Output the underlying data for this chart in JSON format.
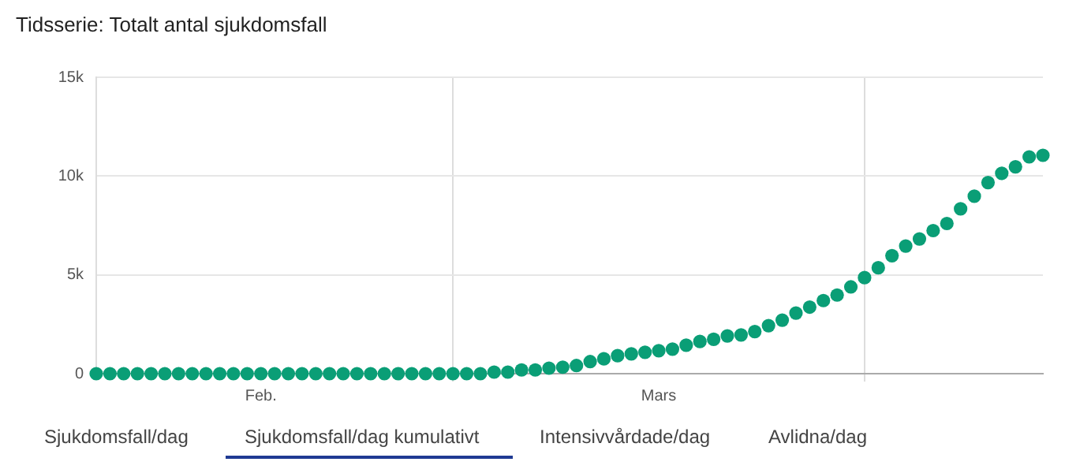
{
  "chart_data": {
    "type": "scatter",
    "title": "Tidsserie: Totalt antal sjukdomsfall",
    "x": [
      "--01-20",
      "--01-21",
      "--01-22",
      "--01-23",
      "--01-24",
      "--01-25",
      "--01-26",
      "--01-27",
      "--01-28",
      "--01-29",
      "--01-30",
      "--01-31",
      "--02-01",
      "--02-02",
      "--02-03",
      "--02-04",
      "--02-05",
      "--02-06",
      "--02-07",
      "--02-08",
      "--02-09",
      "--02-10",
      "--02-11",
      "--02-12",
      "--02-13",
      "--02-14",
      "--02-15",
      "--02-16",
      "--02-17",
      "--02-18",
      "--02-19",
      "--02-20",
      "--02-21",
      "--02-22",
      "--02-23",
      "--02-24",
      "--02-25",
      "--02-26",
      "--02-27",
      "--02-28",
      "--02-29",
      "--03-01",
      "--03-02",
      "--03-03",
      "--03-04",
      "--03-05",
      "--03-06",
      "--03-07",
      "--03-08",
      "--03-09",
      "--03-10",
      "--03-11",
      "--03-12",
      "--03-13",
      "--03-14",
      "--03-15",
      "--03-16",
      "--03-17",
      "--03-18",
      "--03-19",
      "--03-20",
      "--03-21",
      "--03-22",
      "--03-23",
      "--03-24",
      "--03-25",
      "--03-26",
      "--03-27",
      "--03-28",
      "--03-29"
    ],
    "series": [
      {
        "color": "#0a9e76",
        "values": [
          0,
          0,
          0,
          0,
          0,
          0,
          0,
          0,
          0,
          0,
          0,
          0,
          0,
          0,
          0,
          0,
          0,
          0,
          0,
          0,
          0,
          0,
          0,
          0,
          0,
          0,
          0,
          0,
          0,
          80,
          80,
          190,
          190,
          280,
          330,
          410,
          610,
          750,
          910,
          1000,
          1080,
          1160,
          1240,
          1440,
          1630,
          1740,
          1910,
          1960,
          2130,
          2430,
          2710,
          3070,
          3370,
          3700,
          3980,
          4390,
          4860,
          5360,
          5970,
          6460,
          6820,
          7240,
          7600,
          8340,
          8980,
          9670,
          10140,
          10470,
          10970,
          11050
        ]
      }
    ],
    "xlim": [
      "--01-20",
      "--03-29"
    ],
    "xticks": [
      {
        "value": "--02-01",
        "label": "Feb."
      },
      {
        "value": "--02-15",
        "label": null
      },
      {
        "value": "--03-01",
        "label": "Mars"
      },
      {
        "value": "--03-16",
        "label": null
      }
    ],
    "ylim": [
      0,
      15000
    ],
    "yticks": [
      0,
      {
        "value": 5000,
        "label": "5k"
      },
      {
        "value": 10000,
        "label": "10k"
      },
      {
        "value": 15000,
        "label": "15k"
      }
    ],
    "grid": true,
    "legend": false,
    "marker": "circle",
    "annotations": [
      "Sjukdomsfall/dag",
      "Sjukdomsfall/dag kumulativt",
      "Intensivvårdade/dag",
      "Avlidna/dag"
    ]
  }
}
